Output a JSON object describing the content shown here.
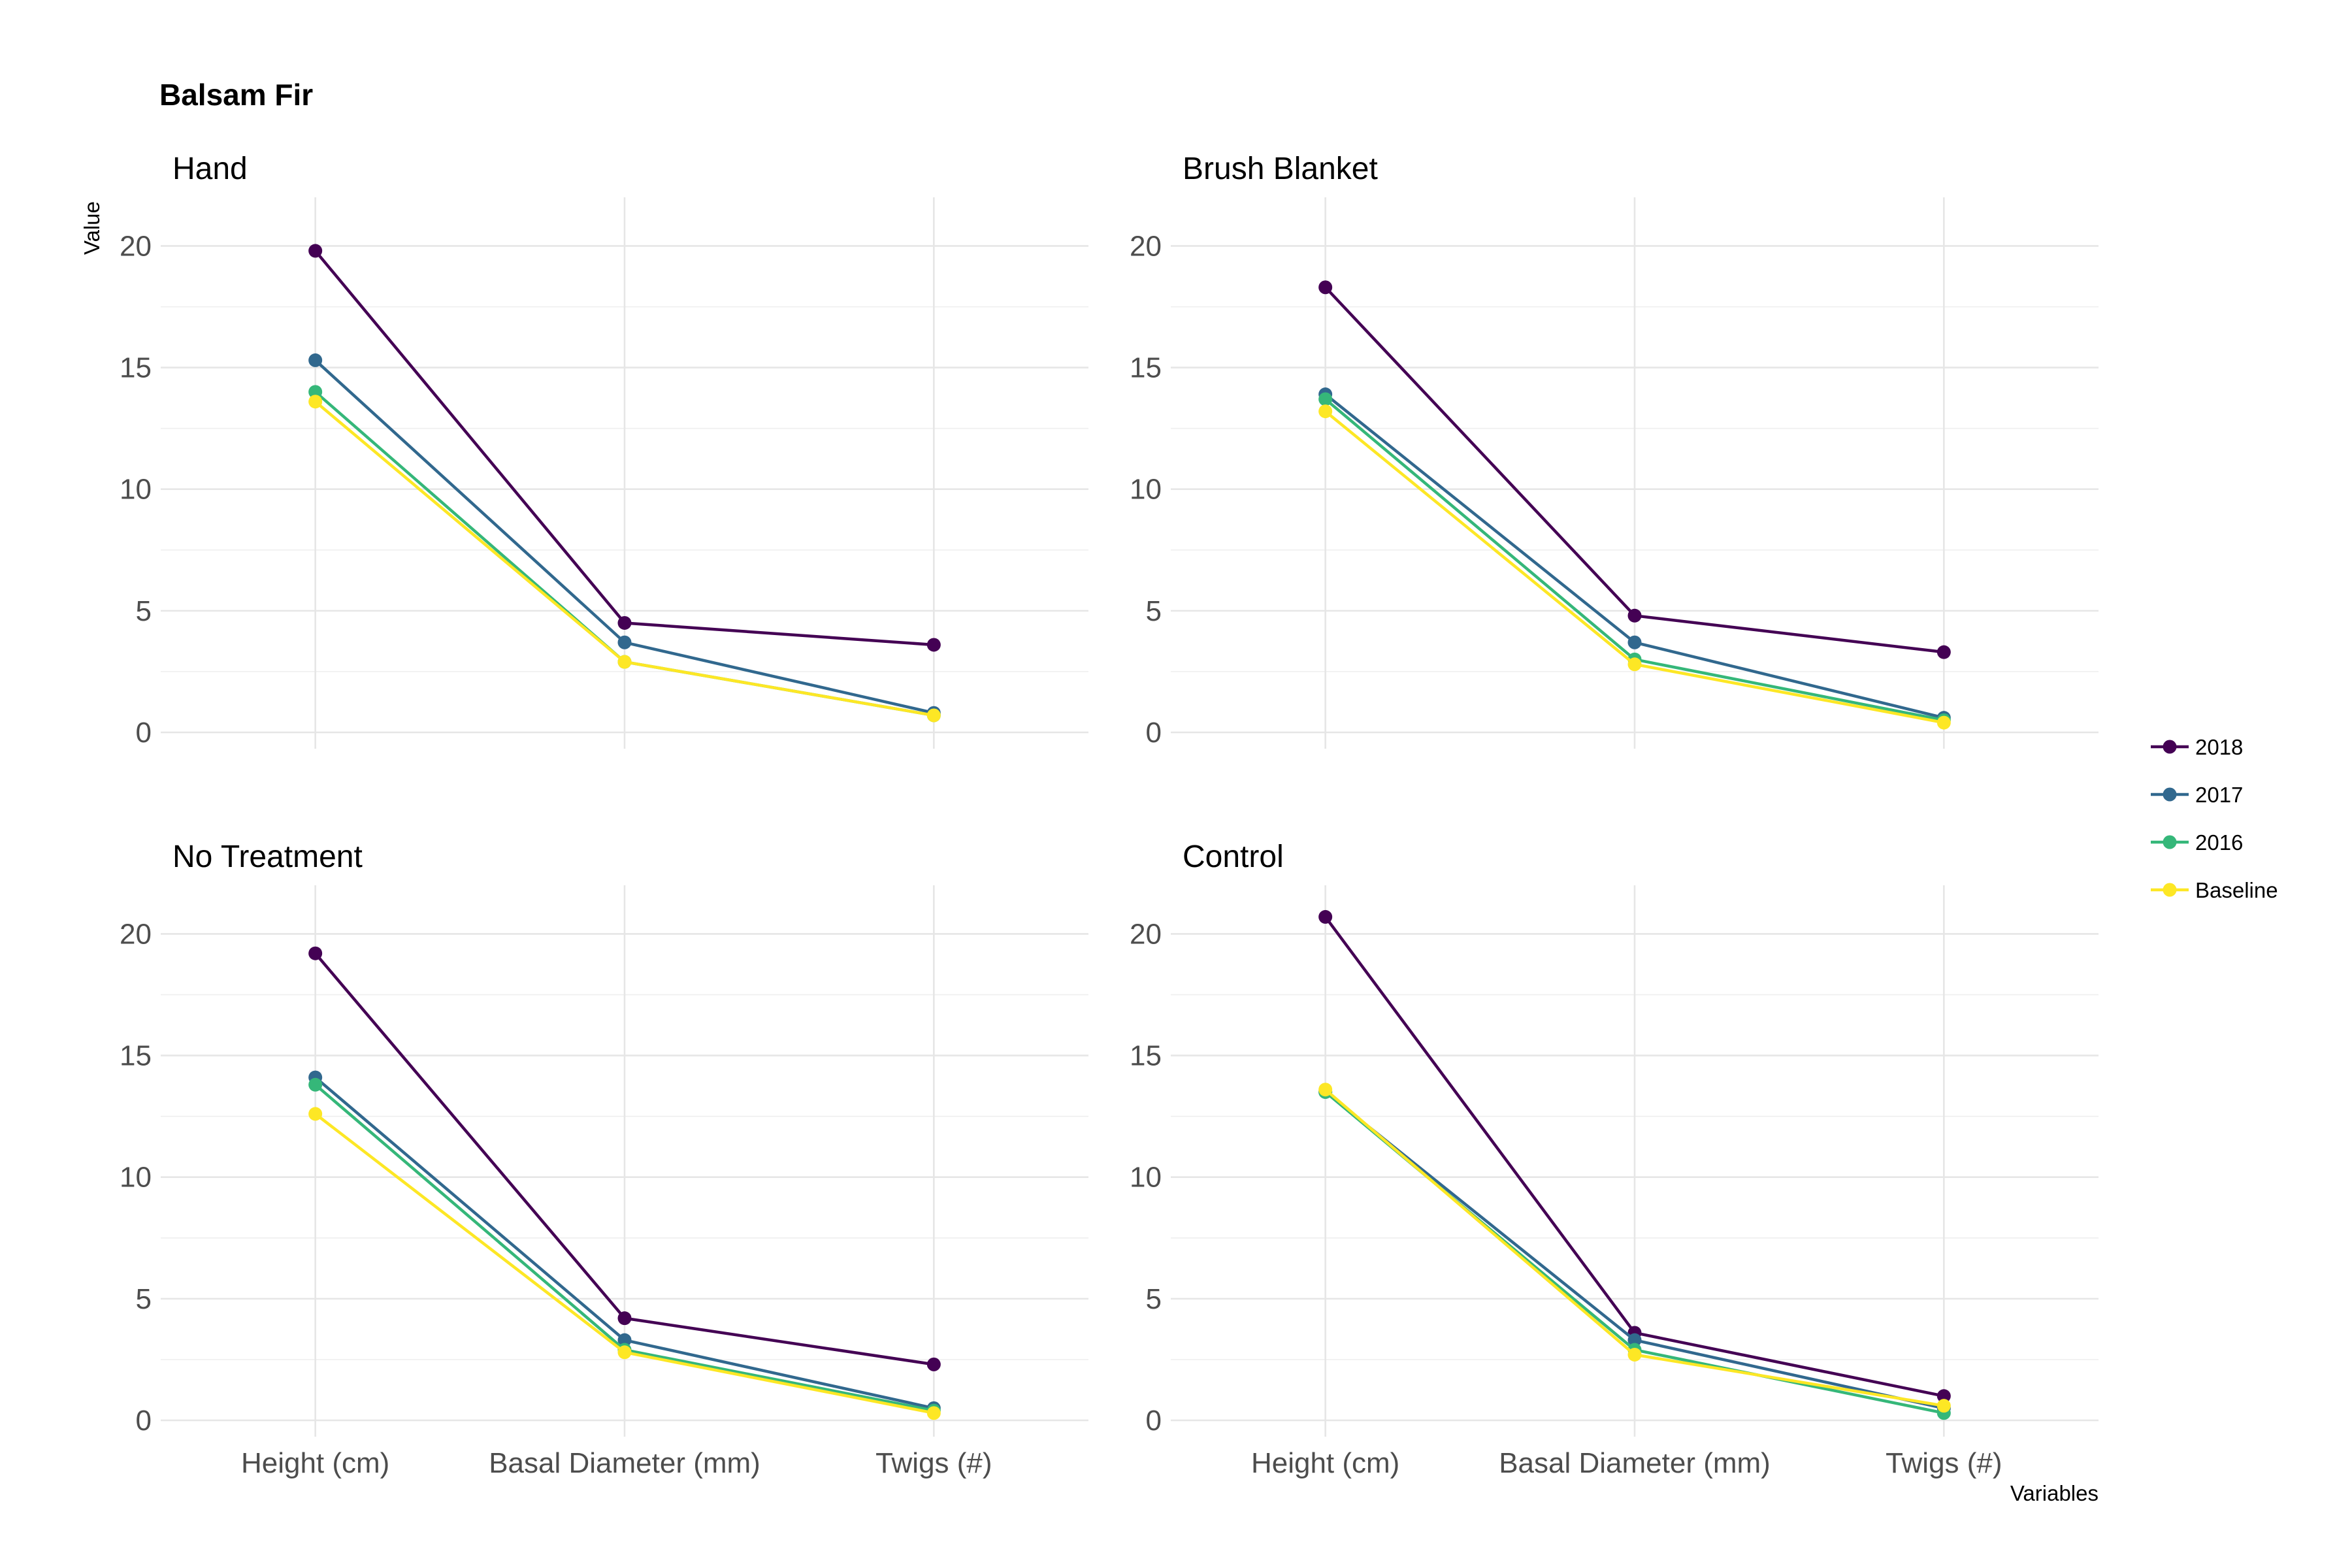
{
  "chart_data": {
    "type": "line",
    "title": "Balsam Fir",
    "xlabel": "Variables",
    "ylabel": "Value",
    "categories": [
      "Height (cm)",
      "Basal Diameter (mm)",
      "Twigs (#)"
    ],
    "ylim": [
      0,
      22
    ],
    "y_ticks": [
      0,
      5,
      10,
      15,
      20
    ],
    "grid": true,
    "legend_position": "right",
    "series_colors": {
      "2018": "#440154",
      "2017": "#31688E",
      "2016": "#35B779",
      "Baseline": "#FDE725"
    },
    "legend": [
      "2018",
      "2017",
      "2016",
      "Baseline"
    ],
    "panels": [
      {
        "title": "Hand",
        "series": [
          {
            "name": "2018",
            "values": [
              19.8,
              4.5,
              3.6
            ]
          },
          {
            "name": "2017",
            "values": [
              15.3,
              3.7,
              0.8
            ]
          },
          {
            "name": "2016",
            "values": [
              14.0,
              2.9,
              0.7
            ]
          },
          {
            "name": "Baseline",
            "values": [
              13.6,
              2.9,
              0.7
            ]
          }
        ]
      },
      {
        "title": "Brush Blanket",
        "series": [
          {
            "name": "2018",
            "values": [
              18.3,
              4.8,
              3.3
            ]
          },
          {
            "name": "2017",
            "values": [
              13.9,
              3.7,
              0.6
            ]
          },
          {
            "name": "2016",
            "values": [
              13.7,
              3.0,
              0.5
            ]
          },
          {
            "name": "Baseline",
            "values": [
              13.2,
              2.8,
              0.4
            ]
          }
        ]
      },
      {
        "title": "No Treatment",
        "series": [
          {
            "name": "2018",
            "values": [
              19.2,
              4.2,
              2.3
            ]
          },
          {
            "name": "2017",
            "values": [
              14.1,
              3.3,
              0.5
            ]
          },
          {
            "name": "2016",
            "values": [
              13.8,
              2.9,
              0.4
            ]
          },
          {
            "name": "Baseline",
            "values": [
              12.6,
              2.8,
              0.3
            ]
          }
        ]
      },
      {
        "title": "Control",
        "series": [
          {
            "name": "2018",
            "values": [
              20.7,
              3.6,
              1.0
            ]
          },
          {
            "name": "2017",
            "values": [
              13.5,
              3.3,
              0.5
            ]
          },
          {
            "name": "2016",
            "values": [
              13.5,
              2.9,
              0.3
            ]
          },
          {
            "name": "Baseline",
            "values": [
              13.6,
              2.7,
              0.6
            ]
          }
        ]
      }
    ]
  }
}
